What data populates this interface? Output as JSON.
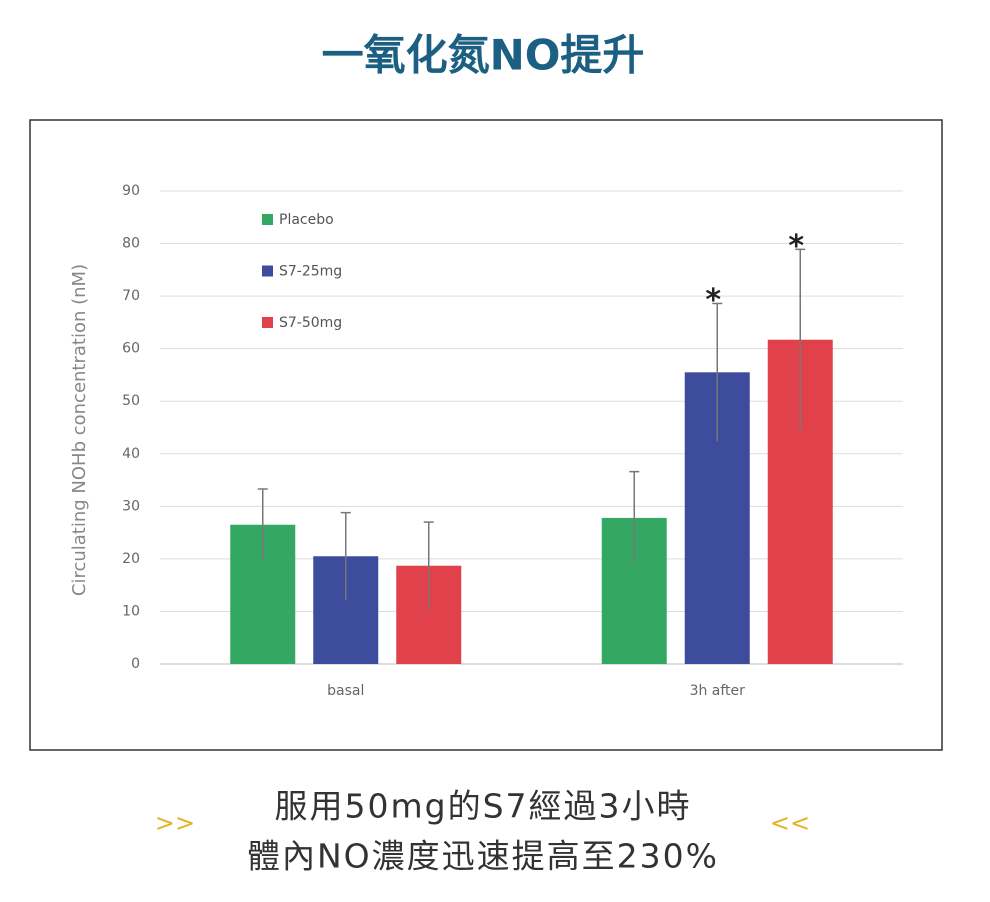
{
  "chart_data": {
    "type": "bar",
    "title": "一氧化氮NO提升",
    "y_label": "Circulating NOHb concentration (nM)",
    "categories": [
      "basal",
      "3h after"
    ],
    "series": [
      {
        "name": "Placebo",
        "color": "#34a862",
        "values": [
          26.5,
          27.8
        ],
        "errors": [
          6.8,
          8.8
        ],
        "markers": [
          null,
          null
        ]
      },
      {
        "name": "S7-25mg",
        "color": "#3d4c9c",
        "values": [
          20.5,
          55.5
        ],
        "errors": [
          8.3,
          13.1
        ],
        "markers": [
          null,
          "*"
        ]
      },
      {
        "name": "S7-50mg",
        "color": "#e0414a",
        "values": [
          18.7,
          61.7
        ],
        "errors": [
          8.3,
          17.2
        ],
        "markers": [
          null,
          "*"
        ]
      }
    ],
    "ylim": [
      0,
      90
    ],
    "yticks": [
      0,
      10,
      20,
      30,
      40,
      50,
      60,
      70,
      80,
      90
    ],
    "grid": true,
    "legend": "upper left"
  },
  "caption": {
    "lines": [
      "服用50mg的S7經過3小時",
      "體內NO濃度迅速提高至230%"
    ],
    "left_mark": ">>",
    "right_mark": "<<"
  }
}
